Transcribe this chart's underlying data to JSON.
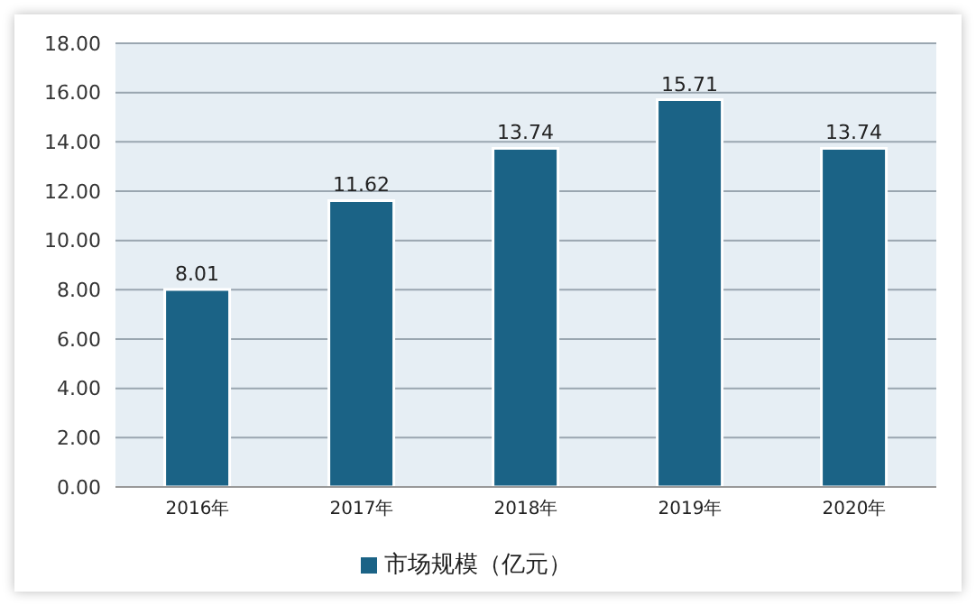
{
  "chart_data": {
    "type": "bar",
    "categories": [
      "2016年",
      "2017年",
      "2018年",
      "2019年",
      "2020年"
    ],
    "series": [
      {
        "name": "市场规模（亿元）",
        "color": "#1b6386",
        "values": [
          8.01,
          11.62,
          13.74,
          15.71,
          13.74
        ]
      }
    ],
    "ylim": [
      0,
      18
    ],
    "yticks": [
      {
        "value": 0,
        "label": "0.00"
      },
      {
        "value": 2,
        "label": "2.00"
      },
      {
        "value": 4,
        "label": "4.00"
      },
      {
        "value": 6,
        "label": "6.00"
      },
      {
        "value": 8,
        "label": "8.00"
      },
      {
        "value": 10,
        "label": "10.00"
      },
      {
        "value": 12,
        "label": "12.00"
      },
      {
        "value": 14,
        "label": "14.00"
      },
      {
        "value": 16,
        "label": "16.00"
      },
      {
        "value": 18,
        "label": "18.00"
      }
    ],
    "grid": "y",
    "legend": "bottom",
    "data_labels": true
  }
}
